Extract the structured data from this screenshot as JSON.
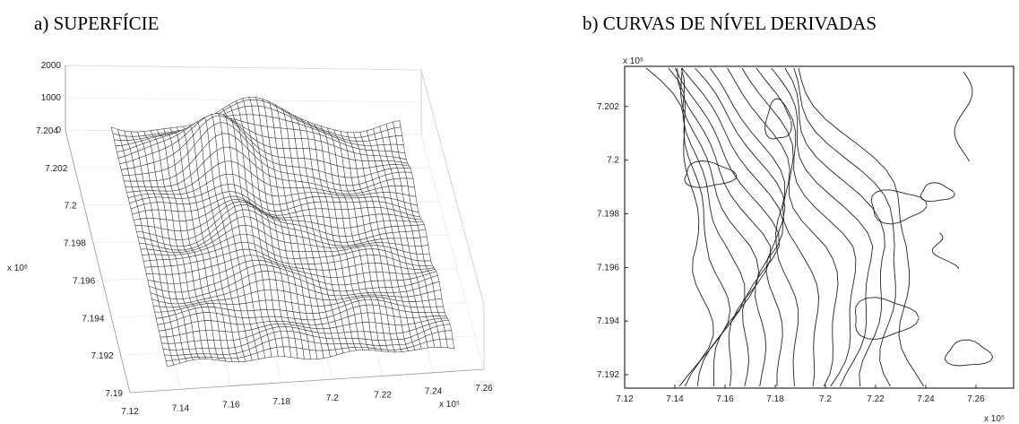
{
  "panels": {
    "a_title": "a) SUPERFÍCIE",
    "b_title": "b) CURVAS DE NÍVEL DERIVADAS"
  },
  "chart_data": [
    {
      "type": "surface",
      "title": "a) SUPERFÍCIE",
      "z_ticks": [
        "0",
        "1000",
        "2000"
      ],
      "y_ticks": [
        "7.19",
        "7.192",
        "7.194",
        "7.196",
        "7.198",
        "7.2",
        "7.202",
        "7.204"
      ],
      "y_multiplier": "x 10⁶",
      "x_ticks": [
        "7.12",
        "7.14",
        "7.16",
        "7.18",
        "7.2",
        "7.22",
        "7.24",
        "7.26"
      ],
      "x_multiplier": "x 10⁵",
      "zlim": [
        0,
        2000
      ],
      "ylim": [
        7.19,
        7.204
      ],
      "xlim": [
        7.12,
        7.26
      ],
      "grid": true
    },
    {
      "type": "contour",
      "title": "b) CURVAS DE NÍVEL DERIVADAS",
      "y_ticks": [
        "7.192",
        "7.194",
        "7.196",
        "7.198",
        "7.2",
        "7.202"
      ],
      "y_multiplier": "x 10⁶",
      "x_ticks": [
        "7.12",
        "7.14",
        "7.16",
        "7.18",
        "7.2",
        "7.22",
        "7.24",
        "7.26"
      ],
      "x_multiplier": "x 10⁵",
      "xlim": [
        7.12,
        7.275
      ],
      "ylim": [
        7.1915,
        7.2035
      ],
      "grid": false
    }
  ]
}
